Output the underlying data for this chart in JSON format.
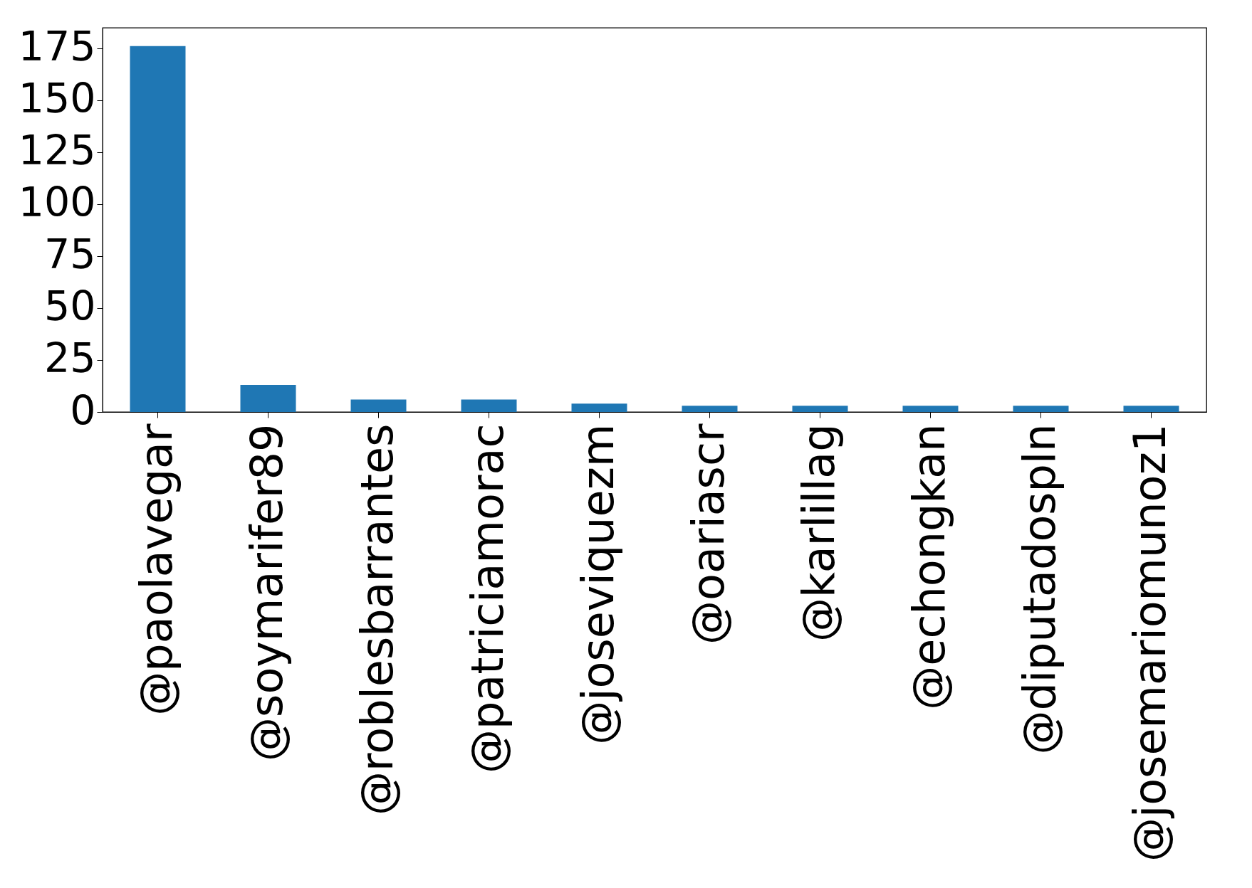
{
  "chart_data": {
    "type": "bar",
    "categories": [
      "@paolavegar",
      "@soymarifer89",
      "@roblesbarrantes",
      "@patriciamorac",
      "@joseviquezm",
      "@oariascr",
      "@karlillag",
      "@echongkan",
      "@diputadospln",
      "@josemariomunoz1"
    ],
    "values": [
      176,
      13,
      6,
      6,
      4,
      3,
      3,
      3,
      3,
      3
    ],
    "color": "#1f77b4",
    "ylim": [
      0,
      184.8
    ],
    "yticks": [
      0,
      25,
      50,
      75,
      100,
      125,
      150,
      175
    ],
    "grid": false
  }
}
